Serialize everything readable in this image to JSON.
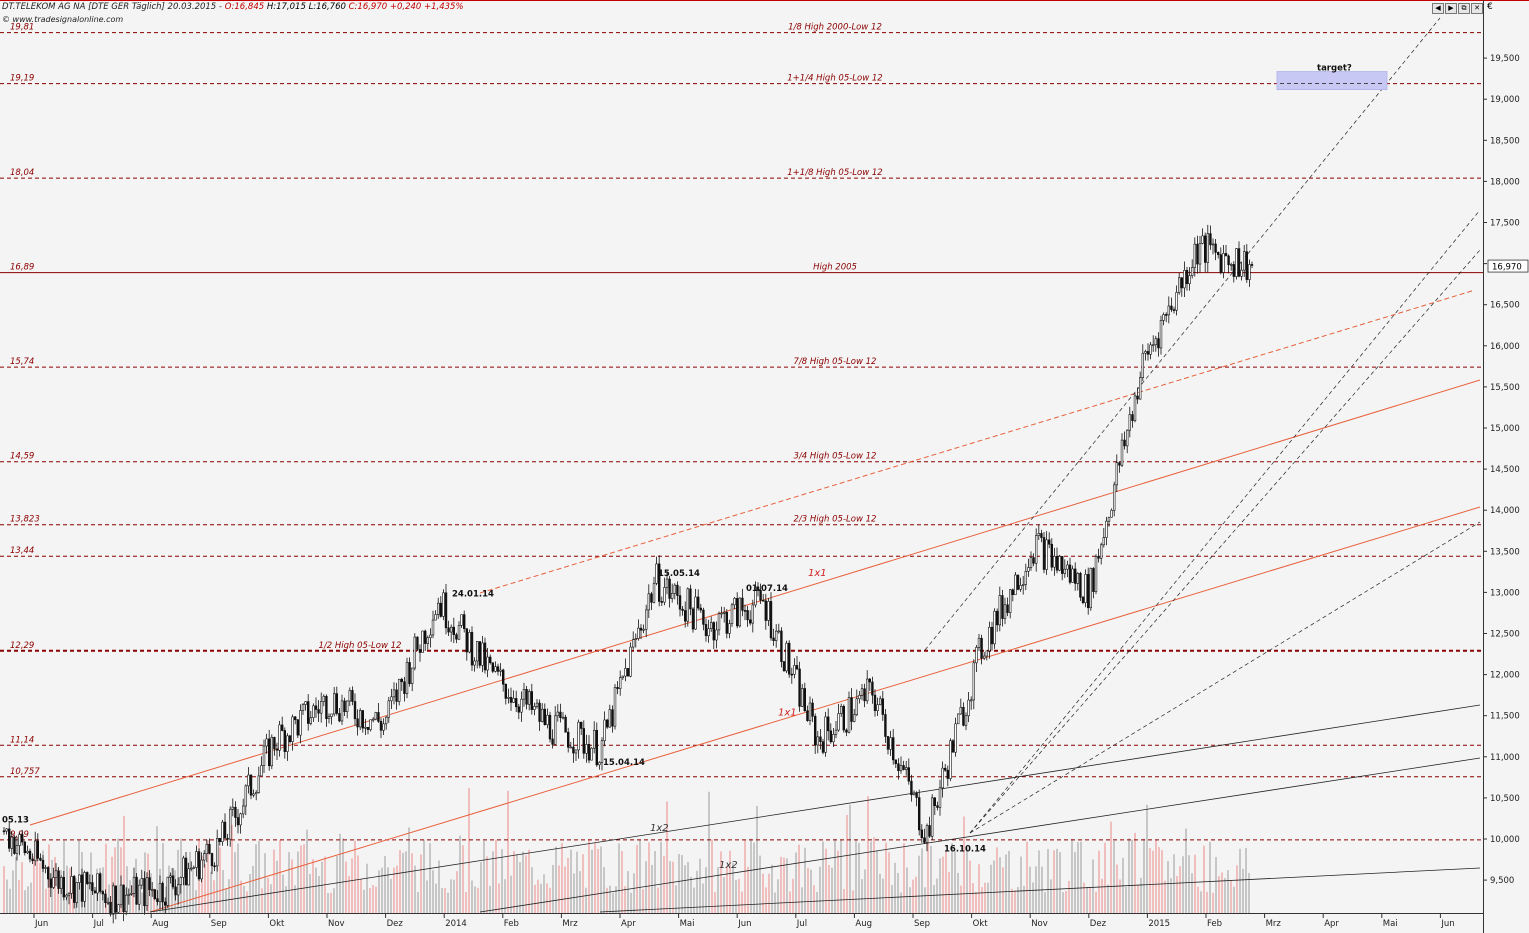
{
  "header": {
    "symbol": "DT.TELEKOM AG NA [DTE GER  Täglich] 20.03.2015 -",
    "open": "O:16,845",
    "high": "H:17,015",
    "low": "L:16,760",
    "close": "C:16,970 +0,240 +1,435%",
    "credit": "© www.tradesignalonline.com",
    "currency": "€"
  },
  "window_buttons": [
    "◀",
    "▶",
    "⧉",
    "✕"
  ],
  "colors": {
    "background": "#f4f4f4",
    "levels": "#8b0000",
    "support_orange": "#e8603c",
    "black_lines": "#222222",
    "target_box": "#c8c8f4",
    "volume": "#aaaaaa"
  },
  "chart_data": {
    "type": "candlestick",
    "instrument": "DT.TELEKOM AG NA",
    "interval": "Täglich",
    "ylim": [
      9.3,
      20.3
    ],
    "y_ticks": [
      "9,500",
      "10,000",
      "10,500",
      "11,000",
      "11,500",
      "12,000",
      "12,500",
      "13,000",
      "13,500",
      "14,000",
      "14,500",
      "15,000",
      "15,500",
      "16,000",
      "16,500",
      "17,000",
      "17,500",
      "18,000",
      "18,500",
      "19,000",
      "19,500"
    ],
    "x_labels": [
      "Jun",
      "Jul",
      "Aug",
      "Sep",
      "Okt",
      "Nov",
      "Dez",
      "2014",
      "Feb",
      "Mrz",
      "Apr",
      "Mai",
      "Jun",
      "Jul",
      "Aug",
      "Sep",
      "Okt",
      "Nov",
      "Dez",
      "2015",
      "Feb",
      "Mrz",
      "Apr",
      "Mai",
      "Jun"
    ],
    "last_price_label": "16,970",
    "levels": [
      {
        "value": 19.81,
        "left": "19,81",
        "center": "1/8 High 2000-Low 12"
      },
      {
        "value": 19.19,
        "left": "19,19",
        "center": "1+1/4 High 05-Low 12"
      },
      {
        "value": 18.04,
        "left": "18,04",
        "center": "1+1/8 High 05-Low 12"
      },
      {
        "value": 16.89,
        "left": "16,89",
        "center": "High 2005"
      },
      {
        "value": 15.74,
        "left": "15,74",
        "center": "7/8 High 05-Low 12"
      },
      {
        "value": 14.59,
        "left": "14,59",
        "center": "3/4 High 05-Low 12"
      },
      {
        "value": 13.823,
        "left": "13,823",
        "center": "2/3 High 05-Low 12"
      },
      {
        "value": 13.44,
        "left": "13,44",
        "center": ""
      },
      {
        "value": 12.29,
        "left": "12,29",
        "center": "1/2 High 05-Low 12"
      },
      {
        "value": 11.14,
        "left": "11,14",
        "center": ""
      },
      {
        "value": 10.757,
        "left": "10,757",
        "center": ""
      },
      {
        "value": 9.99,
        "left": "9,99",
        "center": ""
      }
    ],
    "annotations": [
      {
        "text": "05.13"
      },
      {
        "text": "24.01.14"
      },
      {
        "text": "15.05.14"
      },
      {
        "text": "01.07.14"
      },
      {
        "text": "15.04.14"
      },
      {
        "text": "16.10.14"
      },
      {
        "text": "1x1"
      },
      {
        "text": "1x1"
      },
      {
        "text": "1x2"
      },
      {
        "text": "1x2"
      },
      {
        "text": "target?"
      }
    ],
    "price_path": [
      [
        "2013-05",
        10.1
      ],
      [
        "2013-06",
        9.5
      ],
      [
        "2013-07",
        9.3
      ],
      [
        "2013-08",
        9.4
      ],
      [
        "2013-09",
        9.95
      ],
      [
        "2013-10",
        11.2
      ],
      [
        "2013-11",
        11.7
      ],
      [
        "2013-12",
        11.4
      ],
      [
        "2014-01",
        12.9
      ],
      [
        "2014-02",
        12.0
      ],
      [
        "2014-03",
        11.4
      ],
      [
        "2014-04",
        11.1
      ],
      [
        "2014-05",
        13.15
      ],
      [
        "2014-06",
        12.6
      ],
      [
        "2014-07",
        12.9
      ],
      [
        "2014-08",
        11.2
      ],
      [
        "2014-09",
        11.8
      ],
      [
        "2014-10",
        10.05
      ],
      [
        "2014-11",
        12.3
      ],
      [
        "2014-12",
        13.6
      ],
      [
        "2015-01",
        13.0
      ],
      [
        "2015-02",
        15.8
      ],
      [
        "2015-03",
        17.2
      ],
      [
        "2015-03-20",
        16.97
      ]
    ],
    "grid": false
  }
}
